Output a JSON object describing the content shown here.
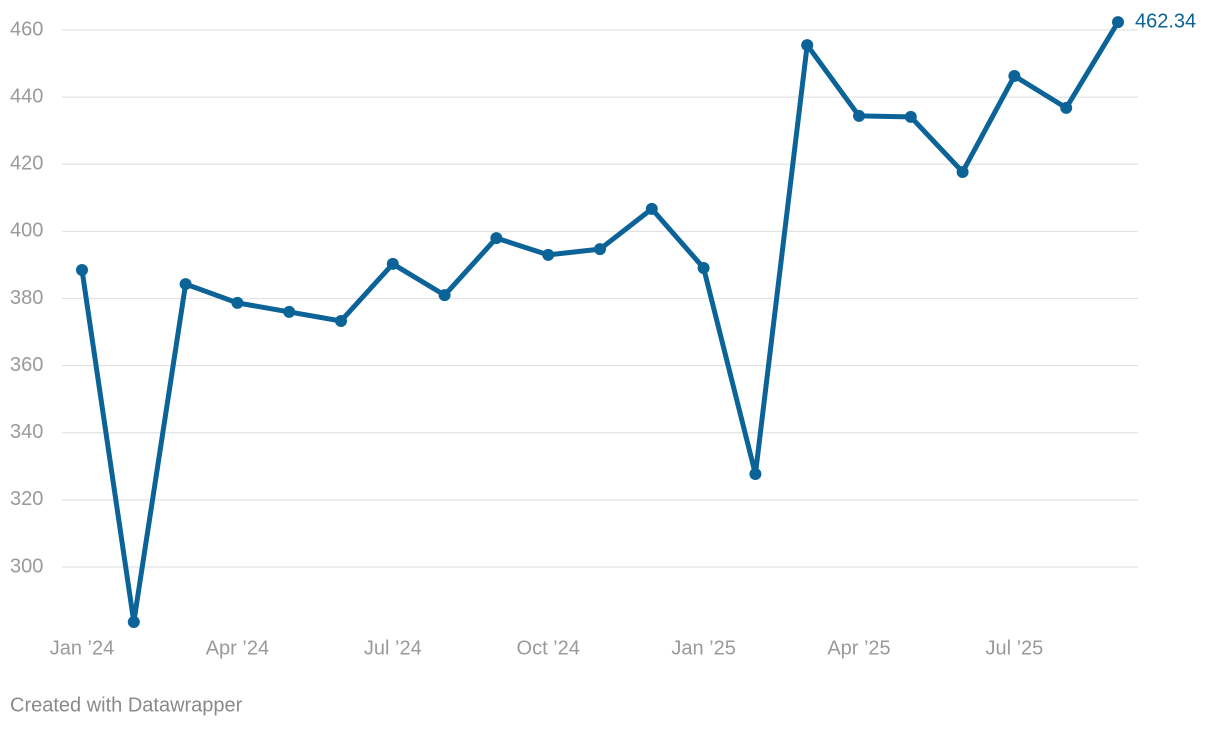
{
  "chart_data": {
    "type": "line",
    "categories": [
      "Jan ’24",
      null,
      null,
      "Apr ’24",
      null,
      null,
      "Jul ’24",
      null,
      null,
      "Oct ’24",
      null,
      null,
      "Jan ’25",
      null,
      null,
      "Apr ’25",
      null,
      null,
      "Jul ’25",
      null,
      null
    ],
    "series": [
      {
        "name": null,
        "color": "#0b6397",
        "values": [
          388.5,
          283.6,
          384.3,
          378.7,
          376.0,
          373.3,
          390.3,
          381.0,
          398.0,
          393.0,
          394.7,
          406.7,
          389.1,
          327.7,
          455.5,
          434.4,
          434.1,
          417.7,
          446.3,
          436.8,
          462.34
        ]
      }
    ],
    "ylim": [
      280,
      465
    ],
    "yticks": [
      300,
      320,
      340,
      360,
      380,
      400,
      420,
      440,
      460
    ],
    "grid": true,
    "credit": "Created with Datawrapper"
  }
}
